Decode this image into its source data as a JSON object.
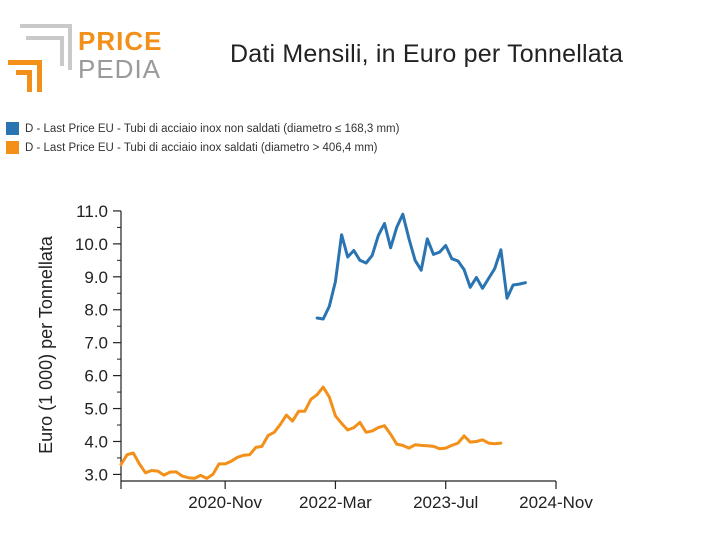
{
  "logo": {
    "word_top": "PRICE",
    "word_bottom": "PEDIA"
  },
  "chart_data": {
    "type": "line",
    "title": "Dati Mensili, in Euro per Tonnellata",
    "ylabel": "Euro (1 000) per Tonnellata",
    "xlabel": "",
    "ylim": [
      2.8,
      11.15
    ],
    "yticks": [
      "3.0",
      "4.0",
      "5.0",
      "6.0",
      "7.0",
      "8.0",
      "9.0",
      "10.0",
      "11.0"
    ],
    "yticks_values": [
      3,
      4,
      5,
      6,
      7,
      8,
      9,
      10,
      11
    ],
    "xlim": [
      0,
      71
    ],
    "xticks": [
      "2020-Nov",
      "2022-Mar",
      "2023-Jul",
      "2024-Nov"
    ],
    "xticks_index": [
      17,
      35,
      53,
      71
    ],
    "series": [
      {
        "name": "D - Last Price EU - Tubi di acciaio inox non saldati (diametro ≤ 168,3 mm)",
        "color": "#2a74b1",
        "start_index": 32,
        "values": [
          7.75,
          7.72,
          8.1,
          8.85,
          10.28,
          9.6,
          9.8,
          9.5,
          9.42,
          9.65,
          10.25,
          10.62,
          9.88,
          10.5,
          10.9,
          10.15,
          9.5,
          9.2,
          10.15,
          9.68,
          9.75,
          9.95,
          9.55,
          9.48,
          9.22,
          8.68,
          8.98,
          8.65,
          8.95,
          9.25,
          9.82,
          8.35,
          8.75,
          8.78,
          8.82
        ]
      },
      {
        "name": "D - Last Price EU - Tubi di acciaio inox saldati (diametro > 406,4 mm)",
        "color": "#f39019",
        "start_index": 0,
        "values": [
          3.3,
          3.6,
          3.65,
          3.32,
          3.05,
          3.12,
          3.1,
          2.98,
          3.07,
          3.08,
          2.95,
          2.9,
          2.88,
          2.97,
          2.88,
          3.0,
          3.32,
          3.32,
          3.4,
          3.52,
          3.58,
          3.6,
          3.82,
          3.85,
          4.18,
          4.28,
          4.52,
          4.8,
          4.62,
          4.92,
          4.92,
          5.28,
          5.42,
          5.65,
          5.35,
          4.78,
          4.55,
          4.35,
          4.42,
          4.58,
          4.28,
          4.32,
          4.42,
          4.48,
          4.22,
          3.92,
          3.88,
          3.8,
          3.9,
          3.88,
          3.87,
          3.85,
          3.78,
          3.8,
          3.88,
          3.95,
          4.17,
          3.98,
          4.0,
          4.05,
          3.95,
          3.93,
          3.95
        ]
      }
    ]
  }
}
